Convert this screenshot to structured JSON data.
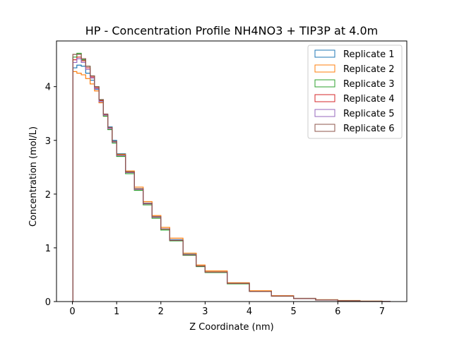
{
  "chart_data": {
    "type": "line",
    "title": "HP - Concentration Profile NH4NO3 + TIP3P at 4.0m",
    "xlabel": "Z Coordinate (nm)",
    "ylabel": "Concentration (mol/L)",
    "xlim": [
      -0.36,
      7.56
    ],
    "ylim": [
      0,
      4.85
    ],
    "xticks": [
      0,
      1,
      2,
      3,
      4,
      5,
      6,
      7
    ],
    "yticks": [
      0,
      1,
      2,
      3,
      4
    ],
    "step": true,
    "grid": false,
    "legend_position": "top-right",
    "series": [
      {
        "name": "Replicate 1",
        "color": "#1f77b4",
        "x": [
          0,
          0.01,
          0.1,
          0.2,
          0.3,
          0.4,
          0.5,
          0.6,
          0.7,
          0.8,
          0.9,
          1.0,
          1.2,
          1.4,
          1.6,
          1.8,
          2.0,
          2.2,
          2.5,
          2.8,
          3.0,
          3.5,
          4.0,
          4.5,
          5.0,
          5.5,
          6.0,
          6.5,
          7.0,
          7.18
        ],
        "y": [
          0,
          4.35,
          4.4,
          4.38,
          4.25,
          4.12,
          3.95,
          3.72,
          3.48,
          3.25,
          3.0,
          2.75,
          2.42,
          2.1,
          1.83,
          1.58,
          1.35,
          1.15,
          0.88,
          0.66,
          0.55,
          0.34,
          0.19,
          0.11,
          0.06,
          0.03,
          0.015,
          0.007,
          0.003,
          0
        ]
      },
      {
        "name": "Replicate 2",
        "color": "#ff7f0e",
        "x": [
          0,
          0.01,
          0.1,
          0.2,
          0.3,
          0.4,
          0.5,
          0.6,
          0.7,
          0.8,
          0.9,
          1.0,
          1.2,
          1.4,
          1.6,
          1.8,
          2.0,
          2.2,
          2.5,
          2.8,
          3.0,
          3.5,
          4.0,
          4.5,
          5.0,
          5.5,
          6.0,
          6.5,
          7.0,
          7.18
        ],
        "y": [
          0,
          4.28,
          4.25,
          4.22,
          4.15,
          4.05,
          3.92,
          3.7,
          3.45,
          3.22,
          2.98,
          2.74,
          2.43,
          2.13,
          1.86,
          1.6,
          1.38,
          1.18,
          0.9,
          0.68,
          0.57,
          0.35,
          0.2,
          0.11,
          0.06,
          0.035,
          0.02,
          0.008,
          0.003,
          0
        ]
      },
      {
        "name": "Replicate 3",
        "color": "#2ca02c",
        "x": [
          0,
          0.01,
          0.1,
          0.2,
          0.3,
          0.4,
          0.5,
          0.6,
          0.7,
          0.8,
          0.9,
          1.0,
          1.2,
          1.4,
          1.6,
          1.8,
          2.0,
          2.2,
          2.5,
          2.8,
          3.0,
          3.5,
          4.0,
          4.5,
          5.0,
          5.5,
          6.0,
          6.5,
          7.0,
          7.18
        ],
        "y": [
          0,
          4.55,
          4.62,
          4.5,
          4.38,
          4.2,
          4.0,
          3.75,
          3.45,
          3.2,
          2.95,
          2.7,
          2.38,
          2.07,
          1.8,
          1.55,
          1.33,
          1.13,
          0.86,
          0.65,
          0.54,
          0.33,
          0.19,
          0.1,
          0.055,
          0.03,
          0.014,
          0.006,
          0.002,
          0
        ]
      },
      {
        "name": "Replicate 4",
        "color": "#d62728",
        "x": [
          0,
          0.01,
          0.1,
          0.2,
          0.3,
          0.4,
          0.5,
          0.6,
          0.7,
          0.8,
          0.9,
          1.0,
          1.2,
          1.4,
          1.6,
          1.8,
          2.0,
          2.2,
          2.5,
          2.8,
          3.0,
          3.5,
          4.0,
          4.5,
          5.0,
          5.5,
          6.0,
          6.5,
          7.0,
          7.18
        ],
        "y": [
          0,
          4.5,
          4.55,
          4.48,
          4.35,
          4.18,
          3.98,
          3.74,
          3.48,
          3.22,
          2.97,
          2.72,
          2.4,
          2.09,
          1.82,
          1.57,
          1.35,
          1.14,
          0.87,
          0.66,
          0.55,
          0.34,
          0.19,
          0.1,
          0.055,
          0.03,
          0.014,
          0.006,
          0.002,
          0
        ]
      },
      {
        "name": "Replicate 5",
        "color": "#9467bd",
        "x": [
          0,
          0.01,
          0.1,
          0.2,
          0.3,
          0.4,
          0.5,
          0.6,
          0.7,
          0.8,
          0.9,
          1.0,
          1.2,
          1.4,
          1.6,
          1.8,
          2.0,
          2.2,
          2.5,
          2.8,
          3.0,
          3.5,
          4.0,
          4.5,
          5.0,
          5.5,
          6.0,
          6.5,
          7.0,
          7.18
        ],
        "y": [
          0,
          4.45,
          4.52,
          4.45,
          4.32,
          4.16,
          3.96,
          3.72,
          3.47,
          3.22,
          2.97,
          2.72,
          2.4,
          2.09,
          1.82,
          1.57,
          1.35,
          1.14,
          0.87,
          0.66,
          0.55,
          0.34,
          0.19,
          0.1,
          0.055,
          0.03,
          0.014,
          0.006,
          0.002,
          0
        ]
      },
      {
        "name": "Replicate 6",
        "color": "#8c564b",
        "x": [
          0,
          0.01,
          0.1,
          0.2,
          0.3,
          0.4,
          0.5,
          0.6,
          0.7,
          0.8,
          0.9,
          1.0,
          1.2,
          1.4,
          1.6,
          1.8,
          2.0,
          2.2,
          2.5,
          2.8,
          3.0,
          3.5,
          4.0,
          4.5,
          5.0,
          5.5,
          6.0,
          6.5,
          7.0,
          7.18
        ],
        "y": [
          0,
          4.6,
          4.6,
          4.52,
          4.38,
          4.2,
          4.0,
          3.76,
          3.49,
          3.24,
          2.98,
          2.73,
          2.41,
          2.1,
          1.83,
          1.58,
          1.35,
          1.14,
          0.87,
          0.66,
          0.55,
          0.34,
          0.19,
          0.1,
          0.055,
          0.03,
          0.014,
          0.006,
          0.002,
          0
        ]
      }
    ]
  }
}
